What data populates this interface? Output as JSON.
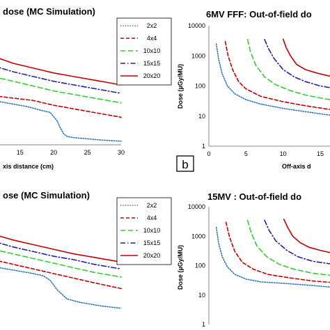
{
  "chart_data": [
    {
      "type": "line",
      "title": "dose (MC Simulation)",
      "xlabel": "xis distance (cm)",
      "ylabel": "",
      "xlim": [
        11,
        30
      ],
      "y_scale": "linear",
      "ylim": [
        0,
        100
      ],
      "x_ticks": [
        "15",
        "20",
        "25",
        "30"
      ],
      "grid": false,
      "legend": "top-right",
      "series": [
        {
          "name": "2x2",
          "color": "#2e75b6",
          "dash": "dotted",
          "x": [
            11,
            12,
            14,
            16,
            18,
            19.5,
            20.5,
            21,
            21.5,
            22,
            23,
            25,
            27,
            30
          ],
          "y": [
            37,
            36,
            34,
            32,
            29,
            27,
            20,
            14,
            9,
            7,
            6,
            5,
            4,
            3
          ]
        },
        {
          "name": "4x4",
          "color": "#c00000",
          "dash": "dashed",
          "x": [
            11,
            14,
            17,
            20,
            23,
            26,
            30
          ],
          "y": [
            41,
            39,
            37,
            33,
            30,
            27,
            23
          ]
        },
        {
          "name": "10x10",
          "color": "#33cc33",
          "dash": "longdash",
          "x": [
            11,
            14,
            17,
            20,
            23,
            26,
            30
          ],
          "y": [
            57,
            53,
            49,
            45,
            42,
            39,
            35
          ]
        },
        {
          "name": "15x15",
          "color": "#1f1fa8",
          "dash": "dashdot",
          "x": [
            11,
            14,
            17,
            20,
            23,
            26,
            30
          ],
          "y": [
            66,
            61,
            57,
            53,
            50,
            47,
            43
          ]
        },
        {
          "name": "20x20",
          "color": "#c00000",
          "dash": "solid",
          "x": [
            11,
            14,
            17,
            20,
            23,
            26,
            30
          ],
          "y": [
            74,
            68,
            64,
            60,
            57,
            54,
            50
          ]
        }
      ]
    },
    {
      "type": "line",
      "title": "6MV FFF: Out-of-field do",
      "xlabel": "Off-axis d",
      "ylabel": "Dose (µGy/MU)",
      "xlim": [
        0,
        18
      ],
      "y_scale": "log",
      "ylim": [
        1,
        10000
      ],
      "y_ticks": [
        "1",
        "10",
        "100",
        "1000",
        "10000"
      ],
      "x_ticks": [
        "0",
        "5",
        "10",
        "15"
      ],
      "panel_letter": "b",
      "grid": false,
      "series": [
        {
          "name": "2x2",
          "color": "#2e75b6",
          "dash": "dotted",
          "x": [
            1,
            1.3,
            1.8,
            2.5,
            3.5,
            5,
            7,
            10,
            13,
            16,
            18
          ],
          "y": [
            2500,
            800,
            250,
            100,
            55,
            35,
            25,
            18,
            14,
            11,
            10
          ]
        },
        {
          "name": "4x4",
          "color": "#c00000",
          "dash": "dashed",
          "x": [
            2.2,
            2.6,
            3.2,
            4,
            5,
            7,
            10,
            13,
            16,
            18
          ],
          "y": [
            3000,
            1000,
            350,
            140,
            80,
            45,
            30,
            22,
            17,
            15
          ]
        },
        {
          "name": "10x10",
          "color": "#33cc33",
          "dash": "longdash",
          "x": [
            5.2,
            5.6,
            6.3,
            7.5,
            9,
            11,
            13,
            15.5,
            18
          ],
          "y": [
            3500,
            1400,
            500,
            200,
            110,
            70,
            50,
            38,
            30
          ]
        },
        {
          "name": "15x15",
          "color": "#1f1fa8",
          "dash": "dashdot",
          "x": [
            7.5,
            8,
            8.8,
            10,
            11.5,
            13,
            15,
            18
          ],
          "y": [
            3500,
            1800,
            800,
            350,
            200,
            140,
            100,
            75
          ]
        },
        {
          "name": "20x20",
          "color": "#c00000",
          "dash": "solid",
          "x": [
            10,
            10.4,
            11,
            11.8,
            13,
            14.5,
            16,
            18
          ],
          "y": [
            3600,
            1900,
            1000,
            520,
            350,
            270,
            220,
            180
          ]
        }
      ]
    },
    {
      "type": "line",
      "title": "ose (MC Simulation)",
      "xlabel": "",
      "ylabel": "",
      "xlim": [
        11,
        30
      ],
      "y_scale": "linear",
      "ylim": [
        0,
        100
      ],
      "grid": false,
      "legend": "top-right",
      "series": [
        {
          "name": "2x2",
          "color": "#2e75b6",
          "dash": "dotted",
          "x": [
            11,
            13,
            15,
            17,
            18.5,
            19.5,
            20.5,
            22,
            24,
            27,
            30
          ],
          "y": [
            50,
            48,
            46,
            44,
            42,
            38,
            30,
            22,
            19,
            16,
            14
          ]
        },
        {
          "name": "4x4",
          "color": "#c00000",
          "dash": "dashed",
          "x": [
            11,
            14,
            17,
            20,
            23,
            26,
            30
          ],
          "y": [
            56,
            52,
            48,
            44,
            40,
            36,
            31
          ]
        },
        {
          "name": "10x10",
          "color": "#33cc33",
          "dash": "longdash",
          "x": [
            11,
            14,
            17,
            20,
            23,
            26,
            30
          ],
          "y": [
            65,
            61,
            57,
            53,
            49,
            45,
            41
          ]
        },
        {
          "name": "15x15",
          "color": "#1f1fa8",
          "dash": "dashdot",
          "x": [
            11,
            14,
            17,
            20,
            23,
            26,
            30
          ],
          "y": [
            72,
            67,
            63,
            59,
            56,
            52,
            48
          ]
        },
        {
          "name": "20x20",
          "color": "#c00000",
          "dash": "solid",
          "x": [
            11,
            14,
            17,
            20,
            23,
            26,
            30
          ],
          "y": [
            78,
            73,
            69,
            65,
            61,
            58,
            54
          ]
        }
      ]
    },
    {
      "type": "line",
      "title": "15MV : Out-of-field do",
      "xlabel": "",
      "ylabel": "Dose (µGy/MU)",
      "xlim": [
        0,
        18
      ],
      "y_scale": "log",
      "ylim": [
        1,
        10000
      ],
      "y_ticks": [
        "1",
        "10",
        "100",
        "1000",
        "10000"
      ],
      "grid": false,
      "series": [
        {
          "name": "2x2",
          "color": "#2e75b6",
          "dash": "dotted",
          "x": [
            1,
            1.3,
            1.8,
            2.5,
            3.5,
            5,
            7,
            10,
            13,
            16,
            18
          ],
          "y": [
            2000,
            600,
            200,
            90,
            50,
            35,
            28,
            25,
            22,
            19,
            17
          ]
        },
        {
          "name": "4x4",
          "color": "#c00000",
          "dash": "dashed",
          "x": [
            2.3,
            2.8,
            3.5,
            4.5,
            6,
            8,
            11,
            14,
            18
          ],
          "y": [
            3000,
            900,
            300,
            130,
            75,
            50,
            38,
            30,
            25
          ]
        },
        {
          "name": "10x10",
          "color": "#33cc33",
          "dash": "longdash",
          "x": [
            5.2,
            5.7,
            6.5,
            7.8,
            9.5,
            11.5,
            14,
            18
          ],
          "y": [
            3500,
            1300,
            450,
            200,
            110,
            75,
            55,
            42
          ]
        },
        {
          "name": "15x15",
          "color": "#1f1fa8",
          "dash": "dashdot",
          "x": [
            7.5,
            8.1,
            9,
            10.5,
            12,
            14,
            18
          ],
          "y": [
            3500,
            1600,
            700,
            330,
            200,
            140,
            100
          ]
        },
        {
          "name": "20x20",
          "color": "#c00000",
          "dash": "solid",
          "x": [
            10.1,
            10.6,
            11.3,
            12.3,
            13.5,
            15,
            16.5,
            18
          ],
          "y": [
            3800,
            2000,
            1000,
            600,
            420,
            330,
            270,
            230
          ]
        }
      ]
    }
  ]
}
